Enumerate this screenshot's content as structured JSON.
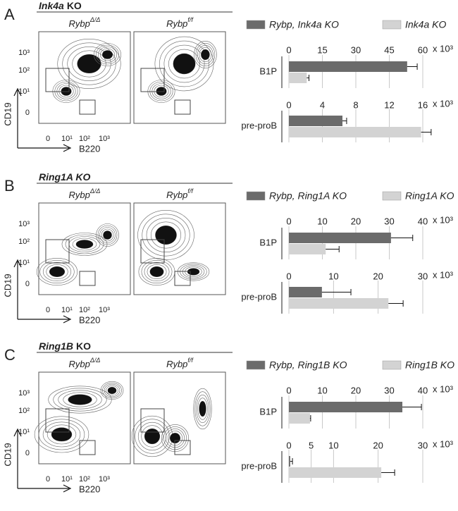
{
  "flow_axes": {
    "y_label": "CD19",
    "x_label": "B220",
    "ticks": [
      "0",
      "10¹",
      "10²",
      "10³"
    ]
  },
  "panels": [
    {
      "letter": "A",
      "title_parts": [
        {
          "text": "Ink4a",
          "italic": true
        },
        {
          "text": "KO",
          "italic": false
        }
      ],
      "plots": [
        {
          "name": "Rybp",
          "sup": "Δ/Δ"
        },
        {
          "name": "Rybp",
          "sup": "f/f"
        }
      ],
      "series": [
        {
          "name": "Rybp, Ink4a KO",
          "color": "#6b6b6b"
        },
        {
          "name": "Ink4a KO",
          "color": "#d3d3d3"
        }
      ],
      "bar_charts": [
        {
          "type": "bar",
          "category": "B1P",
          "xlim": [
            0,
            60
          ],
          "xticks": [
            0,
            15,
            30,
            45,
            60
          ],
          "unit": "x 10³",
          "values": [
            53,
            8
          ],
          "errors": [
            4.5,
            1
          ]
        },
        {
          "type": "bar",
          "category": "pre-proB",
          "xlim": [
            0,
            16
          ],
          "xticks": [
            0,
            4,
            8,
            12,
            16
          ],
          "unit": "x 10³",
          "values": [
            6.4,
            15.8
          ],
          "errors": [
            0.5,
            1.2
          ]
        }
      ]
    },
    {
      "letter": "B",
      "title_parts": [
        {
          "text": "Ring1A KO",
          "italic": true
        }
      ],
      "plots": [
        {
          "name": "Rybp",
          "sup": "Δ/Δ"
        },
        {
          "name": "Rybp",
          "sup": "f/f"
        }
      ],
      "series": [
        {
          "name": "Rybp, Ring1A KO",
          "color": "#6b6b6b"
        },
        {
          "name": "Ring1A KO",
          "color": "#d3d3d3"
        }
      ],
      "bar_charts": [
        {
          "type": "bar",
          "category": "B1P",
          "xlim": [
            0,
            40
          ],
          "xticks": [
            0,
            10,
            20,
            30,
            40
          ],
          "unit": "x 10³",
          "values": [
            30.5,
            11
          ],
          "errors": [
            6.5,
            4
          ]
        },
        {
          "type": "bar",
          "category": "pre-proB",
          "xlim": [
            0,
            30
          ],
          "xticks": [
            0,
            10,
            20,
            30
          ],
          "unit": "x 10³",
          "values": [
            7.4,
            22.3
          ],
          "errors": [
            6.5,
            3.3
          ]
        }
      ]
    },
    {
      "letter": "C",
      "title_parts": [
        {
          "text": "Ring1B",
          "italic": true
        },
        {
          "text": "KO",
          "italic": false
        }
      ],
      "plots": [
        {
          "name": "Rybp",
          "sup": "Δ/Δ"
        },
        {
          "name": "Rybp",
          "sup": "f/f"
        }
      ],
      "series": [
        {
          "name": "Rybp, Ring1B KO",
          "color": "#6b6b6b"
        },
        {
          "name": "Ring1B KO",
          "color": "#d3d3d3"
        }
      ],
      "bar_charts": [
        {
          "type": "bar",
          "category": "B1P",
          "xlim": [
            0,
            40
          ],
          "xticks": [
            0,
            10,
            20,
            30,
            40
          ],
          "unit": "x 10³",
          "values": [
            33.9,
            6.3
          ],
          "errors": [
            5.7,
            0.2
          ]
        },
        {
          "type": "bar",
          "category": "pre-proB",
          "xlim": [
            0,
            30
          ],
          "xticks": [
            0,
            5,
            10,
            20,
            30
          ],
          "unit": "x 10³",
          "values": [
            0.3,
            20.7
          ],
          "errors": [
            0.5,
            3
          ]
        }
      ]
    }
  ]
}
